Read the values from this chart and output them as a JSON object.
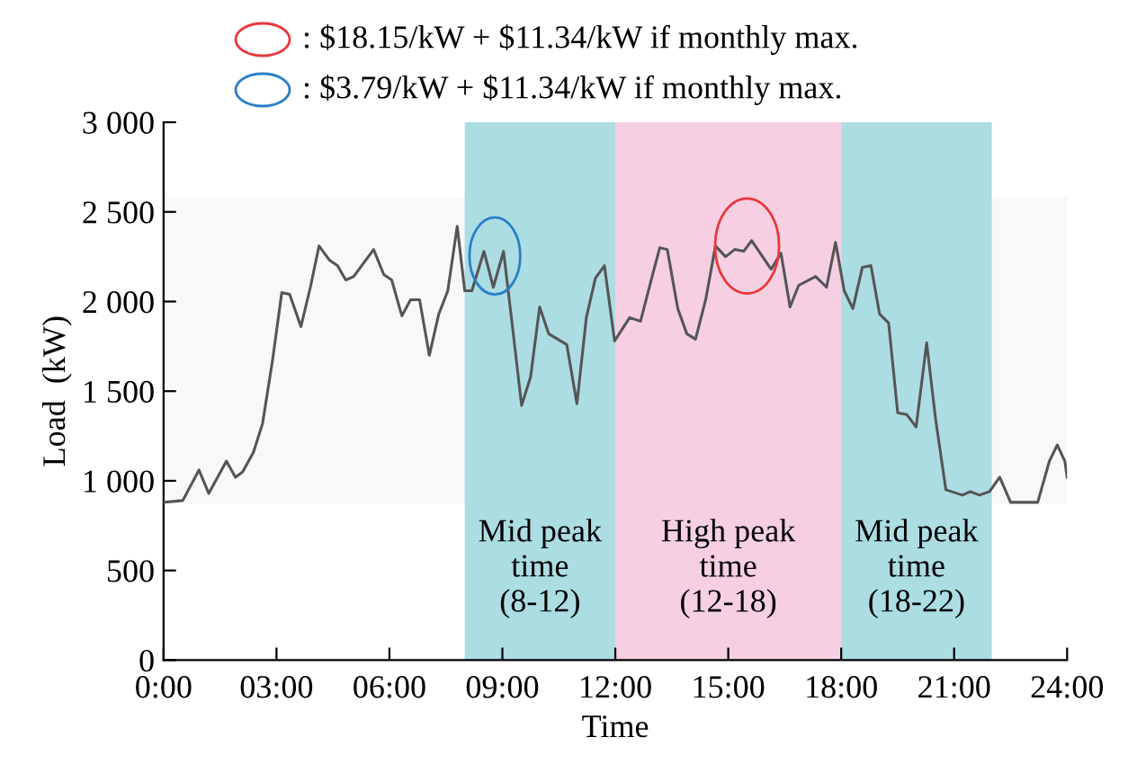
{
  "chart_data": {
    "type": "line",
    "xlabel": "Time",
    "ylabel": "Load  (kW)",
    "x": [
      0,
      0.51,
      0.94,
      1.2,
      1.67,
      1.91,
      2.1,
      2.39,
      2.63,
      2.9,
      3.14,
      3.35,
      3.65,
      3.9,
      4.13,
      4.41,
      4.62,
      4.84,
      5.05,
      5.58,
      5.85,
      6.06,
      6.33,
      6.56,
      6.8,
      7.06,
      7.31,
      7.55,
      7.8,
      8.0,
      8.19,
      8.51,
      8.76,
      9.03,
      9.24,
      9.51,
      9.75,
      9.99,
      10.23,
      10.47,
      10.71,
      10.98,
      11.23,
      11.47,
      11.71,
      11.98,
      12.38,
      12.67,
      12.94,
      13.18,
      13.38,
      13.66,
      13.9,
      14.13,
      14.4,
      14.66,
      14.93,
      15.17,
      15.41,
      15.62,
      15.88,
      16.14,
      16.4,
      16.64,
      16.87,
      17.32,
      17.61,
      17.85,
      18.08,
      18.31,
      18.56,
      18.79,
      19.02,
      19.26,
      19.5,
      19.74,
      19.99,
      20.27,
      20.51,
      20.78,
      21.22,
      21.43,
      21.67,
      21.94,
      22.21,
      22.5,
      23.22,
      23.53,
      23.74,
      23.94,
      24
    ],
    "series": [
      {
        "color": "#555555",
        "values": [
          880,
          890,
          1060,
          930,
          1110,
          1020,
          1050,
          1160,
          1320,
          1680,
          2050,
          2040,
          1860,
          2080,
          2310,
          2230,
          2200,
          2120,
          2140,
          2290,
          2150,
          2120,
          1920,
          2010,
          2010,
          1700,
          1930,
          2060,
          2420,
          2060,
          2060,
          2280,
          2080,
          2280,
          1910,
          1420,
          1580,
          1970,
          1820,
          1790,
          1760,
          1430,
          1910,
          2130,
          2200,
          1780,
          1910,
          1890,
          2110,
          2300,
          2290,
          1960,
          1820,
          1790,
          2010,
          2310,
          2250,
          2290,
          2280,
          2340,
          2260,
          2180,
          2270,
          1970,
          2090,
          2140,
          2080,
          2330,
          2060,
          1960,
          2190,
          2200,
          1930,
          1880,
          1380,
          1370,
          1300,
          1770,
          1340,
          950,
          920,
          940,
          920,
          940,
          1020,
          880,
          880,
          1110,
          1200,
          1110,
          1020
        ]
      }
    ],
    "xlim": [
      0,
      24
    ],
    "xticks": [
      {
        "value": 0,
        "label": "0:00"
      },
      {
        "value": 3,
        "label": "03:00"
      },
      {
        "value": 6,
        "label": "06:00"
      },
      {
        "value": 9,
        "label": "09:00"
      },
      {
        "value": 12,
        "label": "12:00"
      },
      {
        "value": 15,
        "label": "15:00"
      },
      {
        "value": 18,
        "label": "18:00"
      },
      {
        "value": 21,
        "label": "21:00"
      },
      {
        "value": 24,
        "label": "24:00"
      }
    ],
    "ylim": [
      0,
      3000
    ],
    "yticks": [
      0,
      500,
      {
        "value": 1000,
        "label": "1 000"
      },
      {
        "value": 1500,
        "label": "1 500"
      },
      {
        "value": 2000,
        "label": "2 000"
      },
      {
        "value": 2500,
        "label": "2 500"
      },
      {
        "value": 3000,
        "label": "3 000"
      }
    ],
    "bands": [
      {
        "axis": "y",
        "from": 870,
        "to": 2580,
        "color": "#f8f8f8"
      },
      {
        "axis": "x",
        "from": 8,
        "to": 12,
        "label": "Mid peak\ntime\n(8-12)",
        "color": "#acdde3"
      },
      {
        "axis": "x",
        "from": 12,
        "to": 18,
        "label": "High peak\ntime\n(12-18)",
        "color": "#f6d0e2"
      },
      {
        "axis": "x",
        "from": 18,
        "to": 22,
        "label": "Mid peak\ntime\n(18-22)",
        "color": "#acdde3"
      }
    ],
    "annotations": [
      ": $18.15/kW + $11.34/kW if monthly max.",
      ": $3.79/kW + $11.34/kW if monthly max."
    ],
    "grid": false,
    "legend": false,
    "marker": "none",
    "line_style": "solid"
  }
}
